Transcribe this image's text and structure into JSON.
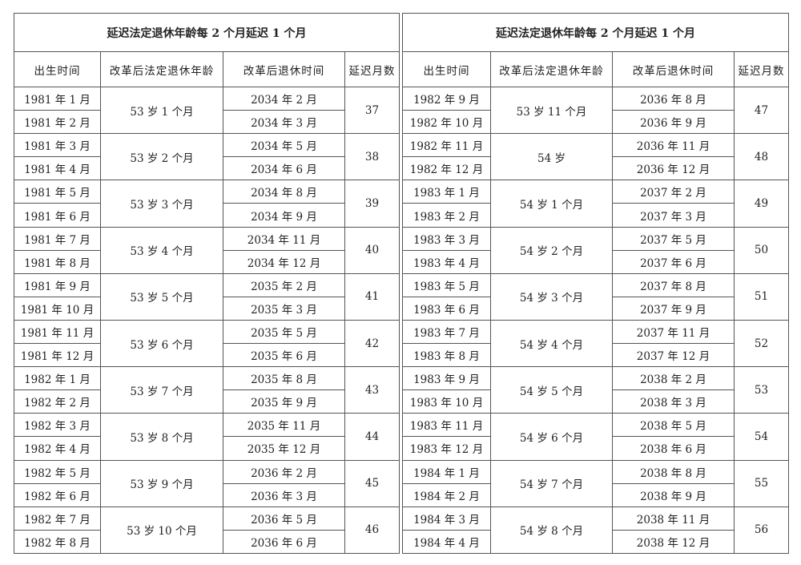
{
  "tables": [
    {
      "title": "延迟法定退休年龄每 2 个月延迟 1 个月",
      "headers": [
        "出生时间",
        "改革后法定退休年龄",
        "改革后退休时间",
        "延迟月数"
      ],
      "groups": [
        {
          "births": [
            "1981 年 1 月",
            "1981 年 2 月"
          ],
          "age": "53 岁 1 个月",
          "retire": [
            "2034 年 2 月",
            "2034 年 3 月"
          ],
          "delay": "37"
        },
        {
          "births": [
            "1981 年 3 月",
            "1981 年 4 月"
          ],
          "age": "53 岁 2 个月",
          "retire": [
            "2034 年 5 月",
            "2034 年 6 月"
          ],
          "delay": "38"
        },
        {
          "births": [
            "1981 年 5 月",
            "1981 年 6 月"
          ],
          "age": "53 岁 3 个月",
          "retire": [
            "2034 年 8 月",
            "2034 年 9 月"
          ],
          "delay": "39"
        },
        {
          "births": [
            "1981 年 7 月",
            "1981 年 8 月"
          ],
          "age": "53 岁 4 个月",
          "retire": [
            "2034 年 11 月",
            "2034 年 12 月"
          ],
          "delay": "40"
        },
        {
          "births": [
            "1981 年 9 月",
            "1981 年 10 月"
          ],
          "age": "53 岁 5 个月",
          "retire": [
            "2035 年 2 月",
            "2035 年 3 月"
          ],
          "delay": "41"
        },
        {
          "births": [
            "1981 年 11 月",
            "1981 年 12 月"
          ],
          "age": "53 岁 6 个月",
          "retire": [
            "2035 年 5 月",
            "2035 年 6 月"
          ],
          "delay": "42"
        },
        {
          "births": [
            "1982 年 1 月",
            "1982 年 2 月"
          ],
          "age": "53 岁 7 个月",
          "retire": [
            "2035 年 8 月",
            "2035 年 9 月"
          ],
          "delay": "43"
        },
        {
          "births": [
            "1982 年 3 月",
            "1982 年 4 月"
          ],
          "age": "53 岁 8 个月",
          "retire": [
            "2035 年 11 月",
            "2035 年 12 月"
          ],
          "delay": "44"
        },
        {
          "births": [
            "1982 年 5 月",
            "1982 年 6 月"
          ],
          "age": "53 岁 9 个月",
          "retire": [
            "2036 年 2 月",
            "2036 年 3 月"
          ],
          "delay": "45"
        },
        {
          "births": [
            "1982 年 7 月",
            "1982 年 8 月"
          ],
          "age": "53 岁 10 个月",
          "retire": [
            "2036 年 5 月",
            "2036 年 6 月"
          ],
          "delay": "46"
        }
      ]
    },
    {
      "title": "延迟法定退休年龄每 2 个月延迟 1 个月",
      "headers": [
        "出生时间",
        "改革后法定退休年龄",
        "改革后退休时间",
        "延迟月数"
      ],
      "groups": [
        {
          "births": [
            "1982 年 9 月",
            "1982 年 10 月"
          ],
          "age": "53 岁 11 个月",
          "retire": [
            "2036 年 8 月",
            "2036 年 9 月"
          ],
          "delay": "47"
        },
        {
          "births": [
            "1982 年 11 月",
            "1982 年 12 月"
          ],
          "age": "54 岁",
          "retire": [
            "2036 年 11 月",
            "2036 年 12 月"
          ],
          "delay": "48"
        },
        {
          "births": [
            "1983 年 1 月",
            "1983 年 2 月"
          ],
          "age": "54 岁 1 个月",
          "retire": [
            "2037 年 2 月",
            "2037 年 3 月"
          ],
          "delay": "49"
        },
        {
          "births": [
            "1983 年 3 月",
            "1983 年 4 月"
          ],
          "age": "54 岁 2 个月",
          "retire": [
            "2037 年 5 月",
            "2037 年 6 月"
          ],
          "delay": "50"
        },
        {
          "births": [
            "1983 年 5 月",
            "1983 年 6 月"
          ],
          "age": "54 岁 3 个月",
          "retire": [
            "2037 年 8 月",
            "2037 年 9 月"
          ],
          "delay": "51"
        },
        {
          "births": [
            "1983 年 7 月",
            "1983 年 8 月"
          ],
          "age": "54 岁 4 个月",
          "retire": [
            "2037 年 11 月",
            "2037 年 12 月"
          ],
          "delay": "52"
        },
        {
          "births": [
            "1983 年 9 月",
            "1983 年 10 月"
          ],
          "age": "54 岁 5 个月",
          "retire": [
            "2038 年 2 月",
            "2038 年 3 月"
          ],
          "delay": "53"
        },
        {
          "births": [
            "1983 年 11 月",
            "1983 年 12 月"
          ],
          "age": "54 岁 6 个月",
          "retire": [
            "2038 年 5 月",
            "2038 年 6 月"
          ],
          "delay": "54"
        },
        {
          "births": [
            "1984 年 1 月",
            "1984 年 2 月"
          ],
          "age": "54 岁 7 个月",
          "retire": [
            "2038 年 8 月",
            "2038 年 9 月"
          ],
          "delay": "55"
        },
        {
          "births": [
            "1984 年 3 月",
            "1984 年 4 月"
          ],
          "age": "54 岁 8 个月",
          "retire": [
            "2038 年 11 月",
            "2038 年 12 月"
          ],
          "delay": "56"
        }
      ]
    }
  ]
}
